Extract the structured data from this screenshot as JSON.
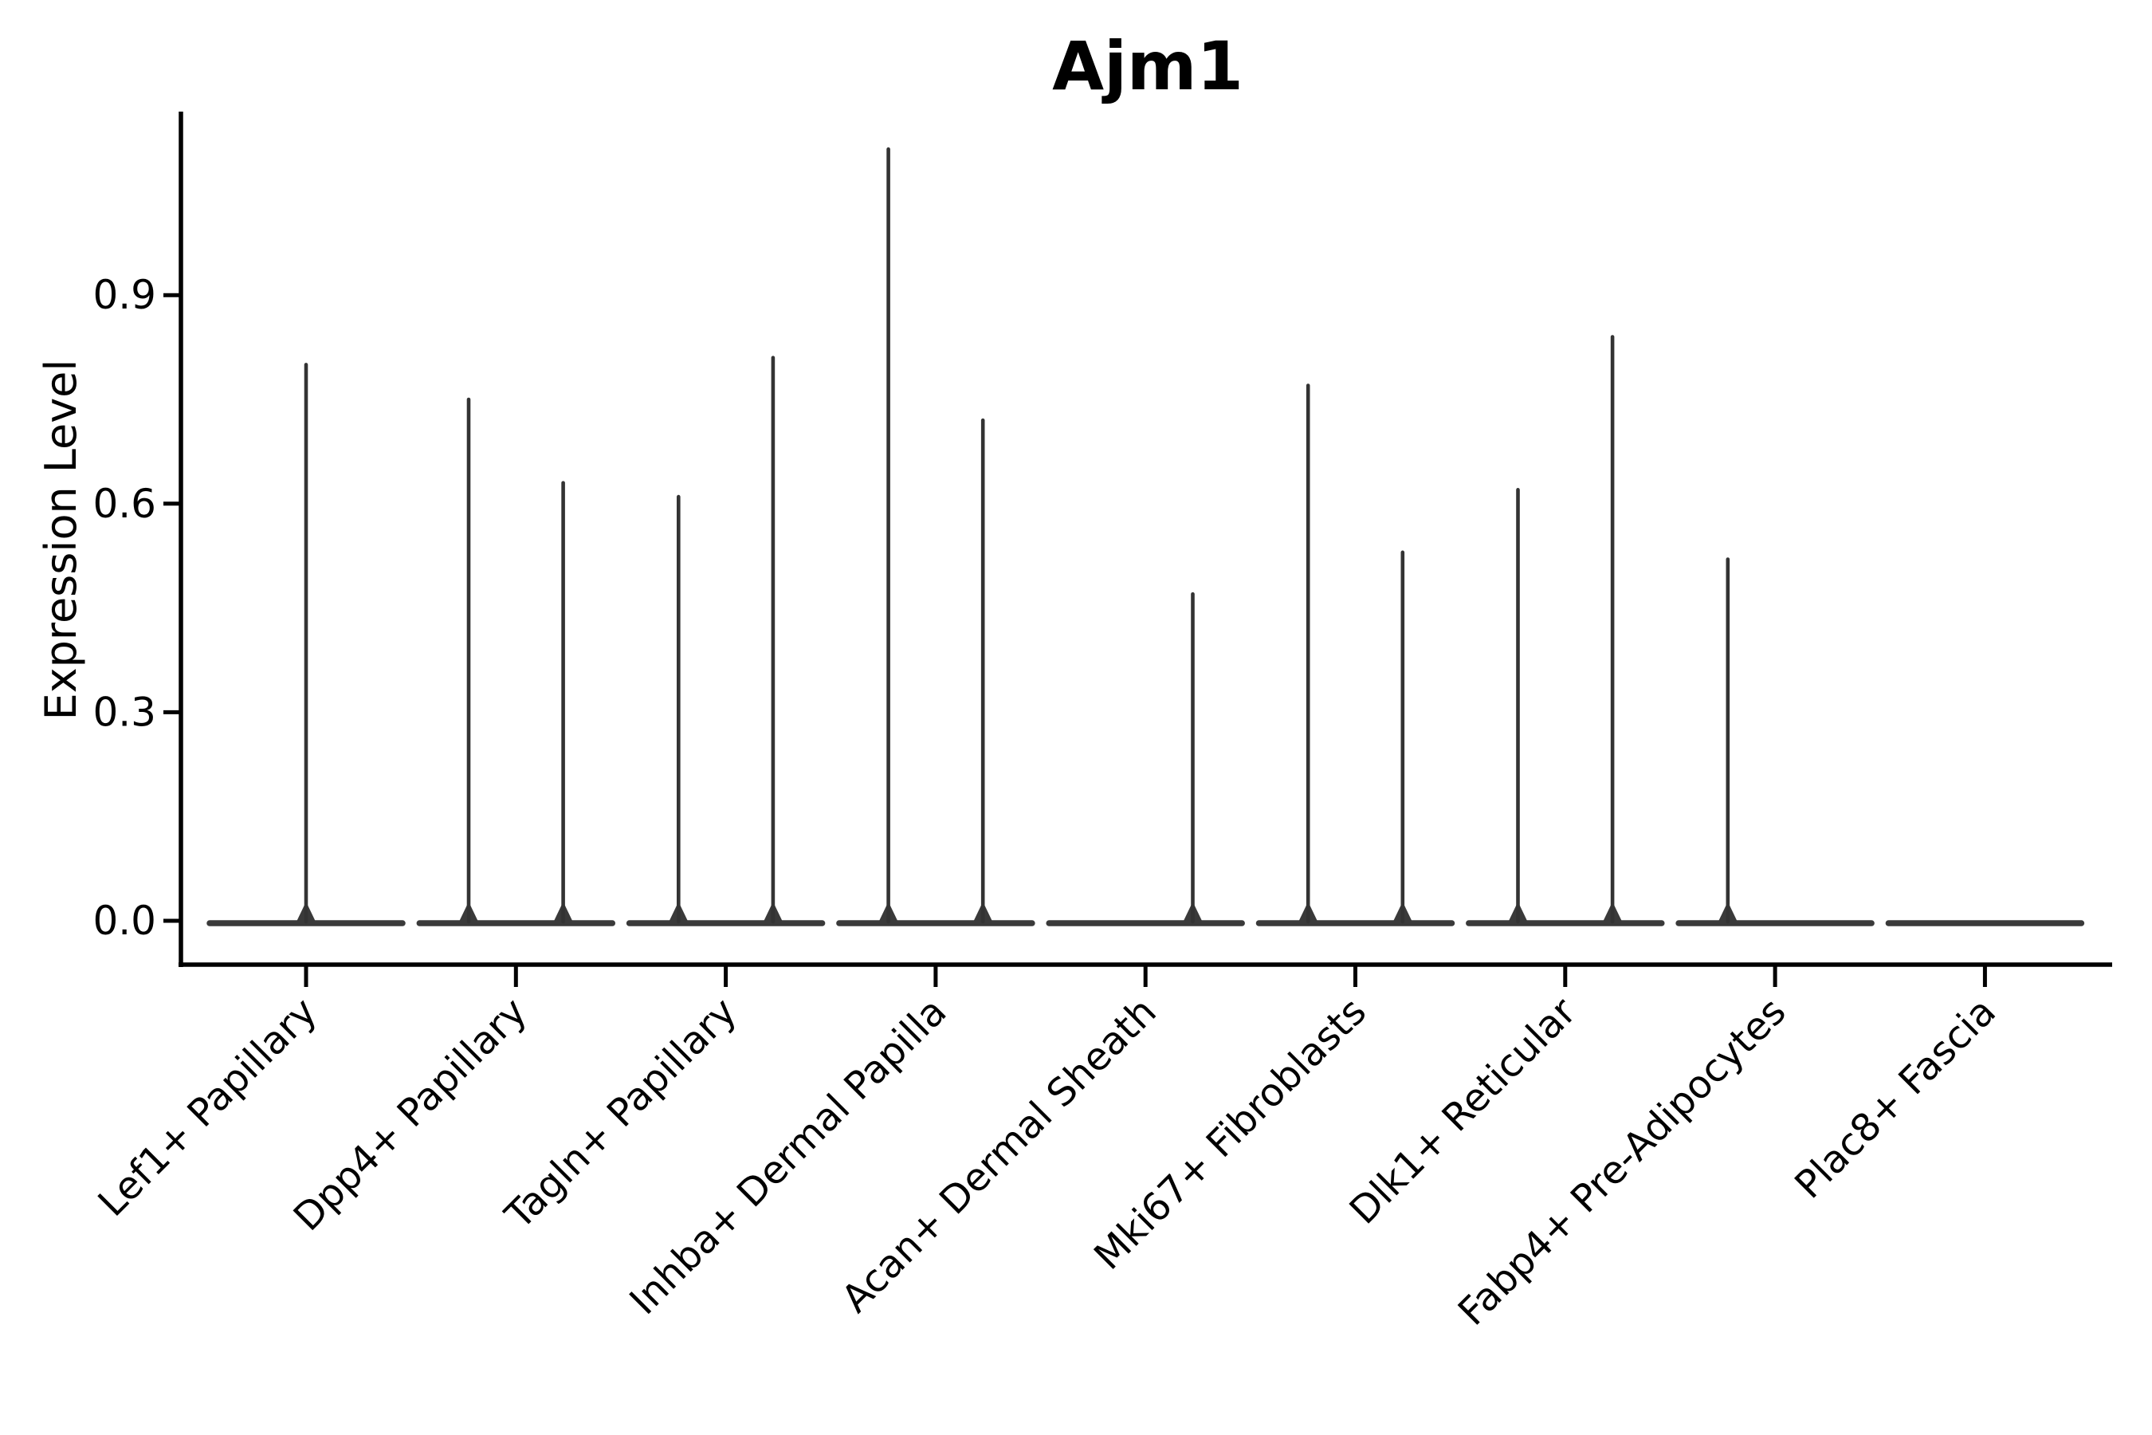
{
  "figure": {
    "background": "#ffffff"
  },
  "chart_data": {
    "type": "violin",
    "title": "Ajm1",
    "xlabel": "",
    "ylabel": "Expression Level",
    "ylim": [
      -0.06,
      1.16
    ],
    "yticks": [
      0.0,
      0.3,
      0.6,
      0.9
    ],
    "ytick_labels": [
      "0.0",
      "0.3",
      "0.6",
      "0.9"
    ],
    "grid": false,
    "legend_position": "none",
    "categories": [
      "Lef1+ Papillary",
      "Dpp4+ Papillary",
      "Tagln+ Papillary",
      "Inhba+ Dermal Papilla",
      "Acan+ Dermal Sheath",
      "Mki67+ Fibroblasts",
      "Dlk1+ Reticular",
      "Fabp4+ Pre-Adipocytes",
      "Plac8+ Fascia"
    ],
    "violins": [
      {
        "category": "Lef1+ Papillary",
        "baseline_at_zero": true,
        "peaks": [
          {
            "position": "center",
            "max_expression": 0.8
          }
        ]
      },
      {
        "category": "Dpp4+ Papillary",
        "baseline_at_zero": true,
        "peaks": [
          {
            "position": "left",
            "max_expression": 0.75
          },
          {
            "position": "right",
            "max_expression": 0.63
          }
        ]
      },
      {
        "category": "Tagln+ Papillary",
        "baseline_at_zero": true,
        "peaks": [
          {
            "position": "left",
            "max_expression": 0.61
          },
          {
            "position": "right",
            "max_expression": 0.81
          }
        ]
      },
      {
        "category": "Inhba+ Dermal Papilla",
        "baseline_at_zero": true,
        "peaks": [
          {
            "position": "left",
            "max_expression": 1.11
          },
          {
            "position": "right",
            "max_expression": 0.72
          }
        ]
      },
      {
        "category": "Acan+ Dermal Sheath",
        "baseline_at_zero": true,
        "peaks": [
          {
            "position": "right",
            "max_expression": 0.47
          }
        ]
      },
      {
        "category": "Mki67+ Fibroblasts",
        "baseline_at_zero": true,
        "peaks": [
          {
            "position": "left",
            "max_expression": 0.77
          },
          {
            "position": "right",
            "max_expression": 0.53
          }
        ]
      },
      {
        "category": "Dlk1+ Reticular",
        "baseline_at_zero": true,
        "peaks": [
          {
            "position": "left",
            "max_expression": 0.62
          },
          {
            "position": "right",
            "max_expression": 0.84
          }
        ]
      },
      {
        "category": "Fabp4+ Pre-Adipocytes",
        "baseline_at_zero": true,
        "peaks": [
          {
            "position": "left",
            "max_expression": 0.52
          }
        ]
      },
      {
        "category": "Plac8+ Fascia",
        "baseline_at_zero": true,
        "peaks": []
      }
    ],
    "colors": {
      "violin": "#333333",
      "violin_base": "#3a3a3a",
      "axis": "#000000",
      "text": "#000000",
      "background": "#ffffff"
    }
  }
}
